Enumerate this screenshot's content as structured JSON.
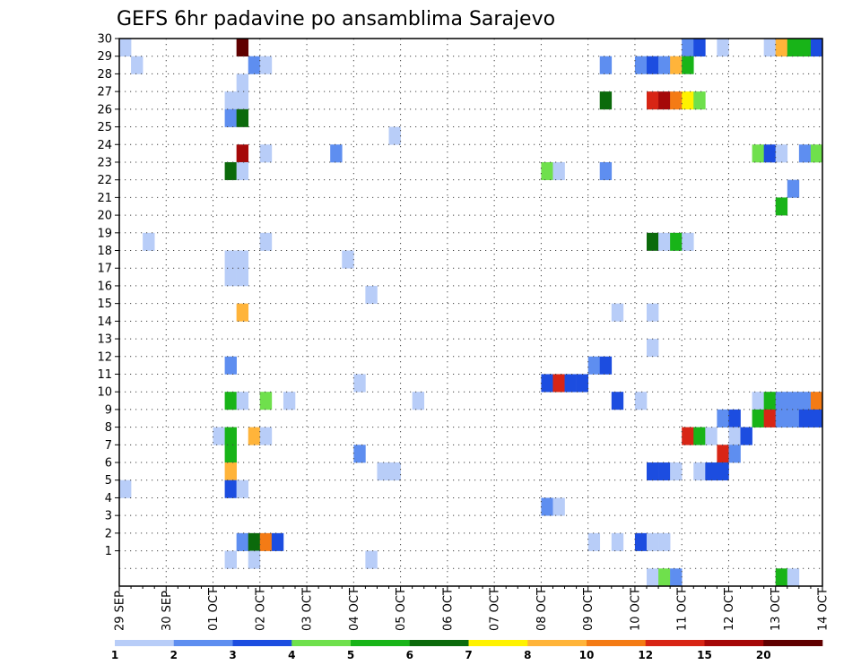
{
  "chart_data": {
    "type": "heatmap",
    "title": "GEFS 6hr padavine po ansamblima Sarajevo",
    "y_labels": [
      "30",
      "29",
      "28",
      "27",
      "26",
      "25",
      "24",
      "23",
      "22",
      "21",
      "20",
      "19",
      "18",
      "17",
      "16",
      "15",
      "14",
      "13",
      "12",
      "11",
      "10",
      "9",
      "8",
      "7",
      "6",
      "5",
      "4",
      "3",
      "2",
      "1"
    ],
    "x_labels": [
      "29 SEP",
      "30 SEP",
      "01 OCT",
      "02 OCT",
      "03 OCT",
      "04 OCT",
      "05 OCT",
      "06 OCT",
      "07 OCT",
      "08 OCT",
      "09 OCT",
      "10 OCT",
      "11 OCT",
      "12 OCT",
      "13 OCT",
      "14 OCT"
    ],
    "grid": true,
    "colorbar": {
      "labels": [
        "1",
        "2",
        "3",
        "4",
        "5",
        "6",
        "7",
        "8",
        "10",
        "12",
        "15",
        "20"
      ],
      "colors": [
        "#b8cdf8",
        "#5e8ef0",
        "#1c4de0",
        "#6fe04c",
        "#18b418",
        "#0b6a0b",
        "#fff200",
        "#ffb43a",
        "#f47b15",
        "#d82515",
        "#a50808",
        "#600000"
      ]
    },
    "cells": [
      {
        "r": 30,
        "c": 0,
        "k": 1
      },
      {
        "r": 30,
        "c": 10,
        "k": 12
      },
      {
        "r": 30,
        "c": 48,
        "k": 2
      },
      {
        "r": 30,
        "c": 49,
        "k": 3
      },
      {
        "r": 30,
        "c": 51,
        "k": 1
      },
      {
        "r": 30,
        "c": 55,
        "k": 1
      },
      {
        "r": 30,
        "c": 56,
        "k": 8
      },
      {
        "r": 30,
        "c": 57,
        "k": 5
      },
      {
        "r": 30,
        "c": 58,
        "k": 5
      },
      {
        "r": 30,
        "c": 59,
        "k": 3
      },
      {
        "r": 29,
        "c": 1,
        "k": 1
      },
      {
        "r": 29,
        "c": 11,
        "k": 2
      },
      {
        "r": 29,
        "c": 12,
        "k": 1
      },
      {
        "r": 29,
        "c": 41,
        "k": 2
      },
      {
        "r": 29,
        "c": 44,
        "k": 2
      },
      {
        "r": 29,
        "c": 45,
        "k": 3
      },
      {
        "r": 29,
        "c": 46,
        "k": 2
      },
      {
        "r": 29,
        "c": 47,
        "k": 8
      },
      {
        "r": 29,
        "c": 48,
        "k": 5
      },
      {
        "r": 28,
        "c": 10,
        "k": 1
      },
      {
        "r": 27,
        "c": 9,
        "k": 1
      },
      {
        "r": 27,
        "c": 10,
        "k": 1
      },
      {
        "r": 27,
        "c": 41,
        "k": 6
      },
      {
        "r": 27,
        "c": 45,
        "k": 10
      },
      {
        "r": 27,
        "c": 46,
        "k": 11
      },
      {
        "r": 27,
        "c": 47,
        "k": 9
      },
      {
        "r": 27,
        "c": 48,
        "k": 7
      },
      {
        "r": 27,
        "c": 49,
        "k": 4
      },
      {
        "r": 26,
        "c": 9,
        "k": 2
      },
      {
        "r": 26,
        "c": 10,
        "k": 6
      },
      {
        "r": 25,
        "c": 23,
        "k": 1
      },
      {
        "r": 24,
        "c": 10,
        "k": 11
      },
      {
        "r": 24,
        "c": 12,
        "k": 1
      },
      {
        "r": 24,
        "c": 18,
        "k": 2
      },
      {
        "r": 24,
        "c": 54,
        "k": 4
      },
      {
        "r": 24,
        "c": 55,
        "k": 3
      },
      {
        "r": 24,
        "c": 56,
        "k": 1
      },
      {
        "r": 24,
        "c": 58,
        "k": 2
      },
      {
        "r": 24,
        "c": 59,
        "k": 4
      },
      {
        "r": 23,
        "c": 9,
        "k": 6
      },
      {
        "r": 23,
        "c": 10,
        "k": 1
      },
      {
        "r": 23,
        "c": 36,
        "k": 4
      },
      {
        "r": 23,
        "c": 37,
        "k": 1
      },
      {
        "r": 23,
        "c": 41,
        "k": 2
      },
      {
        "r": 22,
        "c": 57,
        "k": 2
      },
      {
        "r": 21,
        "c": 56,
        "k": 5
      },
      {
        "r": 19,
        "c": 2,
        "k": 1
      },
      {
        "r": 19,
        "c": 12,
        "k": 1
      },
      {
        "r": 19,
        "c": 45,
        "k": 6
      },
      {
        "r": 19,
        "c": 46,
        "k": 1
      },
      {
        "r": 19,
        "c": 47,
        "k": 5
      },
      {
        "r": 19,
        "c": 48,
        "k": 1
      },
      {
        "r": 18,
        "c": 9,
        "k": 1
      },
      {
        "r": 18,
        "c": 10,
        "k": 1
      },
      {
        "r": 18,
        "c": 19,
        "k": 1
      },
      {
        "r": 17,
        "c": 9,
        "k": 1
      },
      {
        "r": 17,
        "c": 10,
        "k": 1
      },
      {
        "r": 16,
        "c": 21,
        "k": 1
      },
      {
        "r": 15,
        "c": 10,
        "k": 8
      },
      {
        "r": 15,
        "c": 42,
        "k": 1
      },
      {
        "r": 15,
        "c": 45,
        "k": 1
      },
      {
        "r": 13,
        "c": 45,
        "k": 1
      },
      {
        "r": 12,
        "c": 9,
        "k": 2
      },
      {
        "r": 12,
        "c": 40,
        "k": 2
      },
      {
        "r": 12,
        "c": 41,
        "k": 3
      },
      {
        "r": 11,
        "c": 20,
        "k": 1
      },
      {
        "r": 11,
        "c": 36,
        "k": 3
      },
      {
        "r": 11,
        "c": 37,
        "k": 10
      },
      {
        "r": 11,
        "c": 38,
        "k": 3
      },
      {
        "r": 11,
        "c": 39,
        "k": 3
      },
      {
        "r": 10,
        "c": 9,
        "k": 5
      },
      {
        "r": 10,
        "c": 10,
        "k": 1
      },
      {
        "r": 10,
        "c": 12,
        "k": 4
      },
      {
        "r": 10,
        "c": 14,
        "k": 1
      },
      {
        "r": 10,
        "c": 25,
        "k": 1
      },
      {
        "r": 10,
        "c": 42,
        "k": 3
      },
      {
        "r": 10,
        "c": 44,
        "k": 1
      },
      {
        "r": 10,
        "c": 54,
        "k": 1
      },
      {
        "r": 10,
        "c": 55,
        "k": 5
      },
      {
        "r": 10,
        "c": 56,
        "k": 2
      },
      {
        "r": 10,
        "c": 57,
        "k": 2
      },
      {
        "r": 10,
        "c": 58,
        "k": 2
      },
      {
        "r": 10,
        "c": 59,
        "k": 9
      },
      {
        "r": 9,
        "c": 51,
        "k": 2
      },
      {
        "r": 9,
        "c": 52,
        "k": 3
      },
      {
        "r": 9,
        "c": 54,
        "k": 5
      },
      {
        "r": 9,
        "c": 55,
        "k": 10
      },
      {
        "r": 9,
        "c": 56,
        "k": 2
      },
      {
        "r": 9,
        "c": 57,
        "k": 2
      },
      {
        "r": 9,
        "c": 58,
        "k": 3
      },
      {
        "r": 9,
        "c": 59,
        "k": 3
      },
      {
        "r": 8,
        "c": 8,
        "k": 1
      },
      {
        "r": 8,
        "c": 9,
        "k": 5
      },
      {
        "r": 8,
        "c": 11,
        "k": 8
      },
      {
        "r": 8,
        "c": 12,
        "k": 1
      },
      {
        "r": 8,
        "c": 48,
        "k": 10
      },
      {
        "r": 8,
        "c": 49,
        "k": 5
      },
      {
        "r": 8,
        "c": 50,
        "k": 1
      },
      {
        "r": 8,
        "c": 52,
        "k": 1
      },
      {
        "r": 8,
        "c": 53,
        "k": 3
      },
      {
        "r": 7,
        "c": 9,
        "k": 5
      },
      {
        "r": 7,
        "c": 20,
        "k": 2
      },
      {
        "r": 7,
        "c": 51,
        "k": 10
      },
      {
        "r": 7,
        "c": 52,
        "k": 2
      },
      {
        "r": 6,
        "c": 9,
        "k": 8
      },
      {
        "r": 6,
        "c": 22,
        "k": 1
      },
      {
        "r": 6,
        "c": 23,
        "k": 1
      },
      {
        "r": 6,
        "c": 45,
        "k": 3
      },
      {
        "r": 6,
        "c": 46,
        "k": 3
      },
      {
        "r": 6,
        "c": 47,
        "k": 1
      },
      {
        "r": 6,
        "c": 49,
        "k": 1
      },
      {
        "r": 6,
        "c": 50,
        "k": 3
      },
      {
        "r": 6,
        "c": 51,
        "k": 3
      },
      {
        "r": 5,
        "c": 0,
        "k": 1
      },
      {
        "r": 5,
        "c": 9,
        "k": 3
      },
      {
        "r": 5,
        "c": 10,
        "k": 1
      },
      {
        "r": 4,
        "c": 36,
        "k": 2
      },
      {
        "r": 4,
        "c": 37,
        "k": 1
      },
      {
        "r": 2,
        "c": 10,
        "k": 2
      },
      {
        "r": 2,
        "c": 11,
        "k": 6
      },
      {
        "r": 2,
        "c": 12,
        "k": 9
      },
      {
        "r": 2,
        "c": 13,
        "k": 3
      },
      {
        "r": 2,
        "c": 40,
        "k": 1
      },
      {
        "r": 2,
        "c": 42,
        "k": 1
      },
      {
        "r": 2,
        "c": 44,
        "k": 3
      },
      {
        "r": 2,
        "c": 45,
        "k": 1
      },
      {
        "r": 2,
        "c": 46,
        "k": 1
      },
      {
        "r": 1,
        "c": 9,
        "k": 1
      },
      {
        "r": 1,
        "c": 11,
        "k": 1
      },
      {
        "r": 1,
        "c": 21,
        "k": 1
      },
      {
        "r": 0,
        "c": 45,
        "k": 1
      },
      {
        "r": 0,
        "c": 46,
        "k": 4
      },
      {
        "r": 0,
        "c": 47,
        "k": 2
      },
      {
        "r": 0,
        "c": 56,
        "k": 5
      },
      {
        "r": 0,
        "c": 57,
        "k": 1
      }
    ]
  }
}
